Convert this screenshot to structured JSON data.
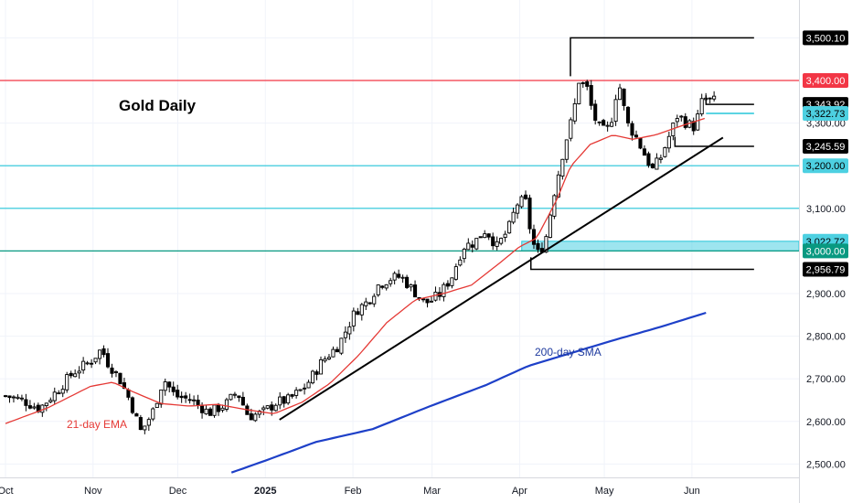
{
  "chart_data": {
    "type": "candlestick",
    "title": "Gold Daily",
    "x_tick_labels": [
      "Oct",
      "Nov",
      "Dec",
      "2025",
      "Feb",
      "Mar",
      "Apr",
      "May",
      "Jun"
    ],
    "x_tick_days": [
      0,
      31,
      61,
      92,
      123,
      151,
      182,
      212,
      243
    ],
    "y_tick_labels": [
      {
        "value": 3300,
        "text": "3,300.00"
      },
      {
        "value": 3100,
        "text": "3,100.00"
      },
      {
        "value": 2900,
        "text": "2,900.00"
      },
      {
        "value": 2800,
        "text": "2,800.00"
      },
      {
        "value": 2700,
        "text": "2,700.00"
      },
      {
        "value": 2600,
        "text": "2,600.00"
      },
      {
        "value": 2500,
        "text": "2,500.00"
      }
    ],
    "ylim": [
      2480,
      3580
    ],
    "price_tags": [
      {
        "value": 3500.1,
        "text": "3,500.10",
        "bg": "#000000",
        "fg": "#ffffff"
      },
      {
        "value": 3400.0,
        "text": "3,400.00",
        "bg": "#f23645",
        "fg": "#ffffff"
      },
      {
        "value": 3343.92,
        "text": "3,343.92",
        "bg": "#000000",
        "fg": "#ffffff"
      },
      {
        "value": 3322.73,
        "text": "3,322.73",
        "bg": "#4dd0e1",
        "fg": "#000000"
      },
      {
        "value": 3245.59,
        "text": "3,245.59",
        "bg": "#000000",
        "fg": "#ffffff"
      },
      {
        "value": 3200.0,
        "text": "3,200.00",
        "bg": "#4dd0e1",
        "fg": "#000000"
      },
      {
        "value": 3022.72,
        "text": "3,022.72",
        "bg": "#4dd0e1",
        "fg": "#000000"
      },
      {
        "value": 3000.0,
        "text": "3,000.00",
        "bg": "#089981",
        "fg": "#ffffff"
      },
      {
        "value": 2956.79,
        "text": "2,956.79",
        "bg": "#000000",
        "fg": "#ffffff"
      }
    ],
    "horizontal_levels": [
      {
        "value": 3400,
        "color": "#f23645"
      },
      {
        "value": 3200,
        "color": "#26c6da"
      },
      {
        "value": 3100,
        "color": "#26c6da"
      },
      {
        "value": 3000,
        "color": "#089981"
      }
    ],
    "support_zone": [
      3000,
      3022.72
    ],
    "trend_line": [
      {
        "day": 97,
        "price": 2604
      },
      {
        "day": 254,
        "price": 3266
      }
    ],
    "step_lines": [
      {
        "from_day": 200,
        "to_day": 265,
        "price": 3500.1,
        "drop_to": 3410
      },
      {
        "from_day": 248,
        "to_day": 265,
        "price": 3343.92,
        "drop_to": 3365
      },
      {
        "from_day": 248,
        "to_day": 265,
        "price": 3322.73
      },
      {
        "from_day": 237,
        "to_day": 265,
        "price": 3245.59,
        "drop_to": 3268
      },
      {
        "from_day": 186,
        "to_day": 265,
        "price": 2956.79,
        "drop_to": 2985
      }
    ],
    "annotations": [
      {
        "text": "21-day EMA",
        "color": "#e53935"
      },
      {
        "text": "200-day SMA",
        "color": "#1e3a9e"
      }
    ],
    "ema21_anchors": [
      [
        0,
        2595
      ],
      [
        15,
        2632
      ],
      [
        30,
        2682
      ],
      [
        38,
        2692
      ],
      [
        45,
        2670
      ],
      [
        55,
        2642
      ],
      [
        65,
        2636
      ],
      [
        75,
        2640
      ],
      [
        85,
        2628
      ],
      [
        95,
        2618
      ],
      [
        105,
        2645
      ],
      [
        115,
        2690
      ],
      [
        125,
        2755
      ],
      [
        135,
        2832
      ],
      [
        145,
        2885
      ],
      [
        155,
        2900
      ],
      [
        165,
        2920
      ],
      [
        175,
        2972
      ],
      [
        182,
        3010
      ],
      [
        188,
        3030
      ],
      [
        195,
        3118
      ],
      [
        200,
        3198
      ],
      [
        207,
        3250
      ],
      [
        215,
        3272
      ],
      [
        222,
        3262
      ],
      [
        230,
        3272
      ],
      [
        240,
        3295
      ],
      [
        248,
        3312
      ]
    ],
    "sma200_anchors": [
      [
        80,
        2480
      ],
      [
        92,
        2508
      ],
      [
        110,
        2552
      ],
      [
        130,
        2582
      ],
      [
        150,
        2635
      ],
      [
        170,
        2685
      ],
      [
        185,
        2730
      ],
      [
        200,
        2760
      ],
      [
        215,
        2790
      ],
      [
        232,
        2822
      ],
      [
        248,
        2855
      ]
    ],
    "price_anchors": [
      [
        0,
        2660
      ],
      [
        6,
        2650
      ],
      [
        12,
        2630
      ],
      [
        18,
        2670
      ],
      [
        24,
        2715
      ],
      [
        30,
        2740
      ],
      [
        34,
        2770
      ],
      [
        36,
        2740
      ],
      [
        40,
        2705
      ],
      [
        44,
        2650
      ],
      [
        48,
        2575
      ],
      [
        52,
        2620
      ],
      [
        56,
        2700
      ],
      [
        60,
        2660
      ],
      [
        66,
        2650
      ],
      [
        72,
        2620
      ],
      [
        78,
        2640
      ],
      [
        82,
        2670
      ],
      [
        86,
        2612
      ],
      [
        91,
        2620
      ],
      [
        96,
        2645
      ],
      [
        100,
        2650
      ],
      [
        106,
        2680
      ],
      [
        112,
        2740
      ],
      [
        118,
        2780
      ],
      [
        124,
        2860
      ],
      [
        128,
        2880
      ],
      [
        132,
        2920
      ],
      [
        136,
        2935
      ],
      [
        140,
        2940
      ],
      [
        144,
        2910
      ],
      [
        148,
        2880
      ],
      [
        150,
        2880
      ],
      [
        154,
        2900
      ],
      [
        158,
        2940
      ],
      [
        162,
        3010
      ],
      [
        166,
        3020
      ],
      [
        170,
        3050
      ],
      [
        174,
        3010
      ],
      [
        178,
        3050
      ],
      [
        181,
        3110
      ],
      [
        184,
        3120
      ],
      [
        186,
        3040
      ],
      [
        188,
        2990
      ],
      [
        191,
        3020
      ],
      [
        194,
        3130
      ],
      [
        198,
        3250
      ],
      [
        201,
        3320
      ],
      [
        203,
        3400
      ],
      [
        206,
        3380
      ],
      [
        208,
        3320
      ],
      [
        211,
        3280
      ],
      [
        214,
        3290
      ],
      [
        217,
        3400
      ],
      [
        220,
        3300
      ],
      [
        223,
        3270
      ],
      [
        226,
        3230
      ],
      [
        229,
        3190
      ],
      [
        232,
        3220
      ],
      [
        235,
        3270
      ],
      [
        238,
        3320
      ],
      [
        241,
        3300
      ],
      [
        244,
        3290
      ],
      [
        247,
        3360
      ],
      [
        250,
        3350
      ],
      [
        252,
        3355
      ]
    ]
  }
}
